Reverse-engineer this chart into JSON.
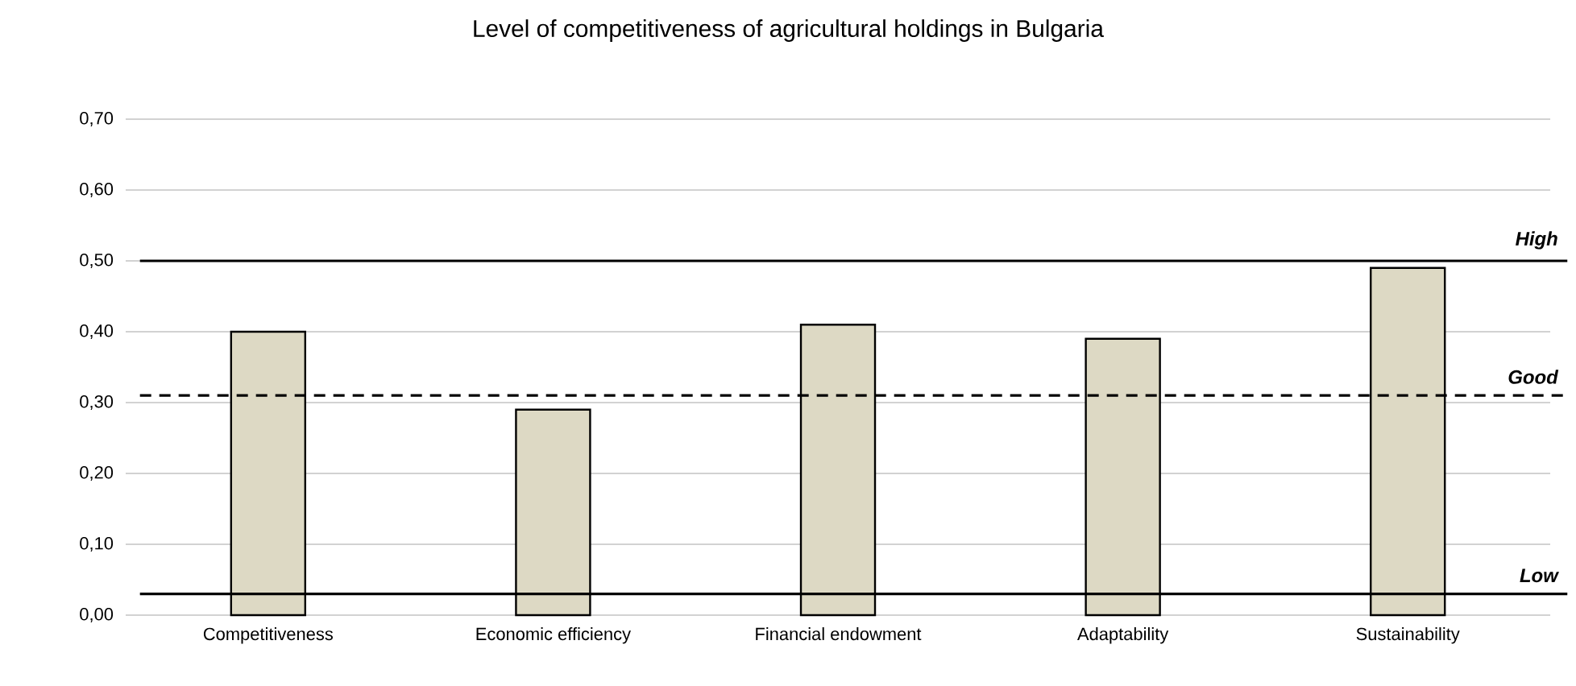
{
  "chart_data": {
    "type": "bar",
    "title": "Level of competitiveness of agricultural holdings in Bulgaria",
    "categories": [
      "Competitiveness",
      "Economic efficiency",
      "Financial endowment",
      "Adaptability",
      "Sustainability"
    ],
    "values": [
      0.4,
      0.29,
      0.41,
      0.39,
      0.49
    ],
    "color": "#ddd9c4",
    "ylim": [
      0,
      0.7
    ],
    "yticks": [
      {
        "value": 0,
        "label": "0,00"
      },
      {
        "value": 0.1,
        "label": "0,10"
      },
      {
        "value": 0.2,
        "label": "0,20"
      },
      {
        "value": 0.3,
        "label": "0,30"
      },
      {
        "value": 0.4,
        "label": "0,40"
      },
      {
        "value": 0.5,
        "label": "0,50"
      },
      {
        "value": 0.6,
        "label": "0,60"
      },
      {
        "value": 0.7,
        "label": "0,70"
      }
    ],
    "grid": "y",
    "ref_lines": [
      {
        "axis": "y",
        "value": 0.5,
        "label": "High",
        "color": "#000000",
        "line_style": "solid"
      },
      {
        "axis": "y",
        "value": 0.31,
        "label": "Good",
        "color": "#000000",
        "line_style": "dashed"
      },
      {
        "axis": "y",
        "value": 0.03,
        "label": "Low",
        "color": "#000000",
        "line_style": "solid"
      }
    ]
  }
}
